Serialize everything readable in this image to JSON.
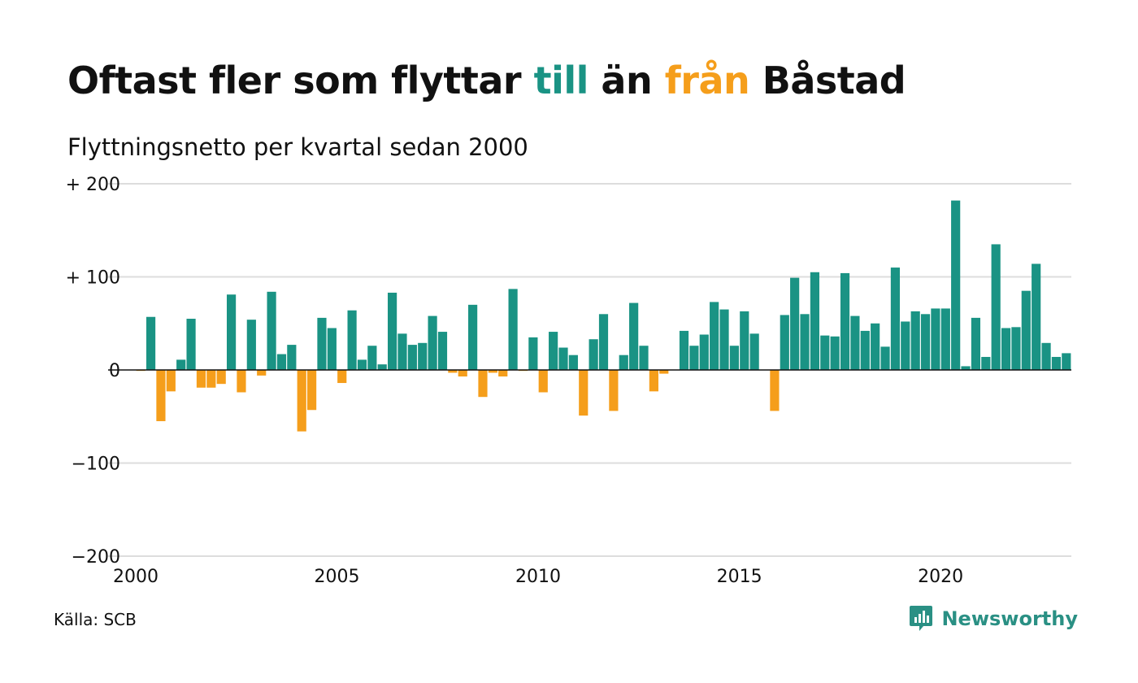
{
  "title": {
    "part1": "Oftast fler som flyttar ",
    "highlight_pos": "till",
    "part2": " än ",
    "highlight_neg": "från",
    "part3": " Båstad"
  },
  "subtitle": "Flyttningsnetto per kvartal sedan 2000",
  "source": "Källa: SCB",
  "brand": {
    "name": "Newsworthy",
    "icon": "newsworthy-logo-icon"
  },
  "colors": {
    "positive": "#1a9384",
    "negative": "#f59e1b",
    "grid": "#dddddd",
    "axis": "#111111",
    "brand": "#2a9084"
  },
  "chart_data": {
    "type": "bar",
    "x_start_year": 2000,
    "ylim": [
      -200,
      200
    ],
    "y_ticks": [
      200,
      100,
      0,
      -100,
      -200
    ],
    "y_tick_labels": [
      "+ 200",
      "+ 100",
      "0",
      "−100",
      "−200"
    ],
    "x_ticks": [
      "2000",
      "2005",
      "2010",
      "2015",
      "2020"
    ],
    "grid": true,
    "values": [
      -1,
      57,
      -55,
      -23,
      11,
      55,
      -19,
      -19,
      -15,
      81,
      -24,
      54,
      -6,
      84,
      17,
      27,
      -66,
      -43,
      56,
      45,
      -14,
      64,
      11,
      26,
      6,
      83,
      39,
      27,
      29,
      58,
      41,
      -3,
      -7,
      70,
      -29,
      -3,
      -7,
      87,
      -1,
      35,
      -24,
      41,
      24,
      16,
      -49,
      33,
      60,
      -44,
      16,
      72,
      26,
      -23,
      -4,
      0,
      42,
      26,
      38,
      73,
      65,
      26,
      63,
      39,
      0,
      -44,
      59,
      99,
      60,
      105,
      37,
      36,
      104,
      58,
      42,
      50,
      25,
      110,
      52,
      63,
      60,
      66,
      66,
      182,
      4,
      56,
      14,
      135,
      45,
      46,
      85,
      114,
      29,
      14,
      18
    ]
  }
}
